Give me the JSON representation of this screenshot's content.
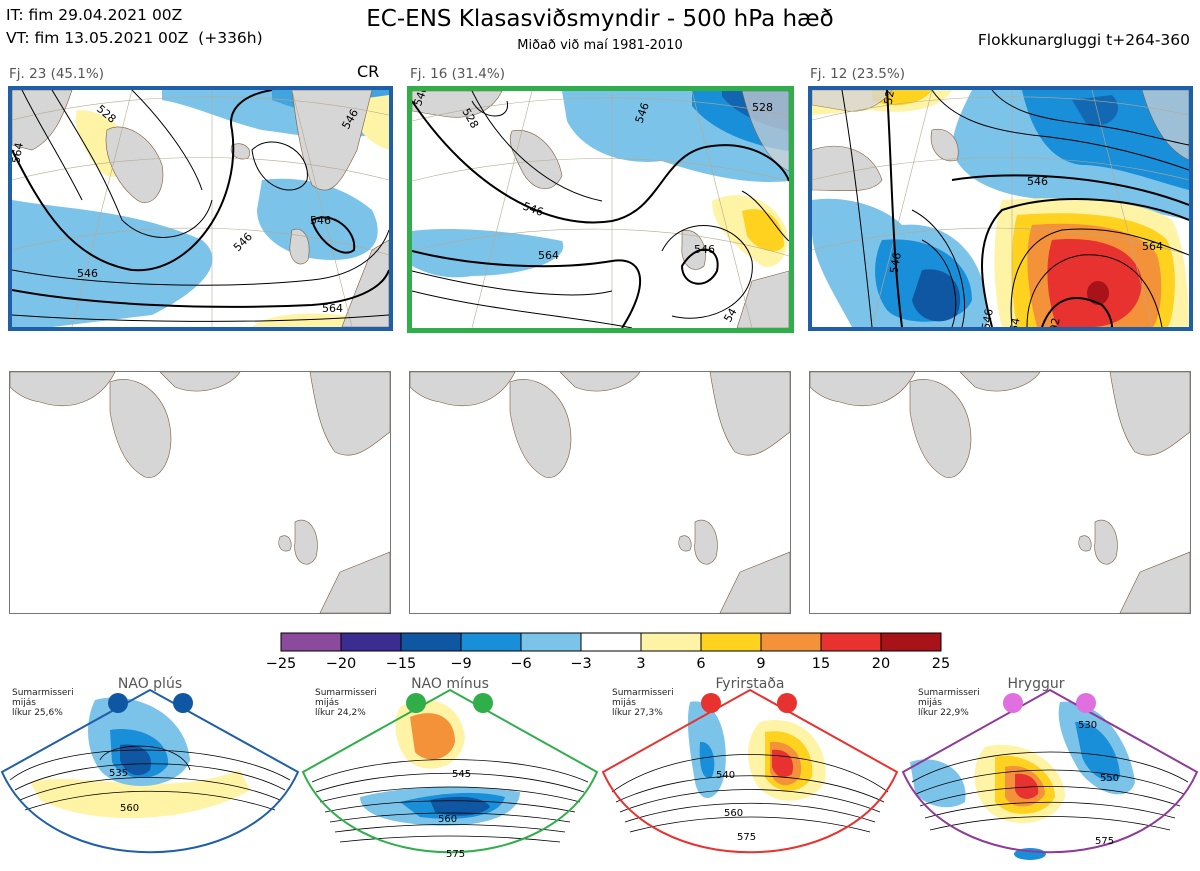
{
  "header": {
    "it": "IT: fim 29.04.2021 00Z",
    "vt": "VT: fim 13.05.2021 00Z  (+336h)",
    "title": "EC-ENS Klasasviðsmyndir - 500 hPa hæð",
    "subtitle": "Miðað við maí 1981-2010",
    "window": "Flokkunargluggi t+264-360"
  },
  "clusters": [
    {
      "label": "Fj. 23 (45.1%)",
      "members": 23,
      "percent": 45.1,
      "border_color": "#1f5fa8",
      "regime": "NAO plús",
      "tag": "CR"
    },
    {
      "label": "Fj. 16 (31.4%)",
      "members": 16,
      "percent": 31.4,
      "border_color": "#2fae4a",
      "regime": "NAO mínus"
    },
    {
      "label": "Fj. 12 (23.5%)",
      "members": 12,
      "percent": 23.5,
      "border_color": "#1f5fa8",
      "regime": "NAO plús"
    }
  ],
  "contour_labels": {
    "c1": [
      "564",
      "546",
      "546",
      "546",
      "546",
      "564",
      "528"
    ],
    "c2": [
      "546",
      "528",
      "546",
      "546",
      "564",
      "546",
      "528",
      "54"
    ],
    "c3": [
      "528",
      "546",
      "546",
      "564",
      "546",
      "54",
      "92"
    ]
  },
  "colorbar": {
    "ticks": [
      "−25",
      "−20",
      "−15",
      "−9",
      "−6",
      "−3",
      "3",
      "6",
      "9",
      "15",
      "20",
      "25"
    ],
    "colors": [
      "#8b4a9c",
      "#3b2d8f",
      "#0f57a3",
      "#1a8fd9",
      "#7cc3ea",
      "#ffffff",
      "#fff3a6",
      "#ffd21f",
      "#f4923a",
      "#e8322f",
      "#a8131a"
    ]
  },
  "regimes": [
    {
      "title": "NAO plús",
      "note": "Sumarmisseri\nmijás\nlíkur 25,6%",
      "color": "#1f5fa8",
      "dot": "#0f57a3",
      "labels": [
        "535",
        "560"
      ]
    },
    {
      "title": "NAO mínus",
      "note": "Sumarmisseri\nmijás\nlíkur 24,2%",
      "color": "#2fae4a",
      "dot": "#2fae4a",
      "labels": [
        "545",
        "560",
        "575"
      ]
    },
    {
      "title": "Fyrirstaða",
      "note": "Sumarmisseri\nmijás\nlíkur 27,3%",
      "color": "#e8322f",
      "dot": "#e8322f",
      "labels": [
        "540",
        "560",
        "575"
      ]
    },
    {
      "title": "Hryggur",
      "note": "Sumarmisseri\nmijás\nlíkur 22,9%",
      "color": "#8e3a9a",
      "dot": "#e070e0",
      "labels": [
        "530",
        "550",
        "575"
      ]
    }
  ]
}
